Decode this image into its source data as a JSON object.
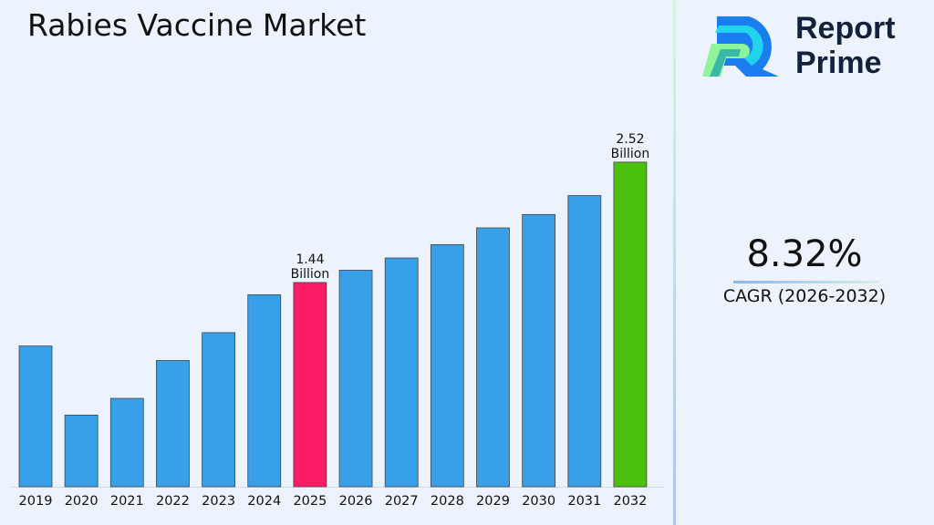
{
  "title": "Rabies Vaccine Market",
  "logo": {
    "line1": "Report",
    "line2": "Prime"
  },
  "cagr": {
    "value": "8.32%",
    "label": "CAGR (2026-2032)"
  },
  "chart_data": {
    "type": "bar",
    "title": "Rabies Vaccine Market",
    "categories": [
      "2019",
      "2020",
      "2021",
      "2022",
      "2023",
      "2024",
      "2025",
      "2026",
      "2027",
      "2028",
      "2029",
      "2030",
      "2031",
      "2032"
    ],
    "values": [
      0.87,
      0.25,
      0.4,
      0.74,
      0.99,
      1.33,
      1.44,
      1.55,
      1.66,
      1.78,
      1.93,
      2.05,
      2.22,
      2.52
    ],
    "unit": "Billion",
    "colors": {
      "default": "#38a0e8",
      "highlight_2025": "#fc1c66",
      "highlight_2032": "#4cc00e"
    },
    "data_labels": [
      {
        "category": "2025",
        "line1": "1.44",
        "line2": "Billion"
      },
      {
        "category": "2032",
        "line1": "2.52",
        "line2": "Billion"
      }
    ],
    "grid": false,
    "legend": "none"
  }
}
